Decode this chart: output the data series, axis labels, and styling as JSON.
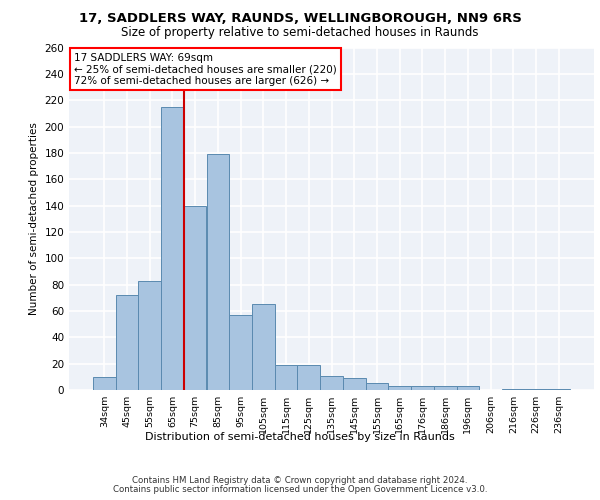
{
  "title1": "17, SADDLERS WAY, RAUNDS, WELLINGBOROUGH, NN9 6RS",
  "title2": "Size of property relative to semi-detached houses in Raunds",
  "xlabel": "Distribution of semi-detached houses by size in Raunds",
  "ylabel": "Number of semi-detached properties",
  "footer1": "Contains HM Land Registry data © Crown copyright and database right 2024.",
  "footer2": "Contains public sector information licensed under the Open Government Licence v3.0.",
  "categories": [
    "34sqm",
    "45sqm",
    "55sqm",
    "65sqm",
    "75sqm",
    "85sqm",
    "95sqm",
    "105sqm",
    "115sqm",
    "125sqm",
    "135sqm",
    "145sqm",
    "155sqm",
    "165sqm",
    "176sqm",
    "186sqm",
    "196sqm",
    "206sqm",
    "216sqm",
    "226sqm",
    "236sqm"
  ],
  "values": [
    10,
    72,
    83,
    215,
    140,
    179,
    57,
    65,
    19,
    19,
    11,
    9,
    5,
    3,
    3,
    3,
    3,
    0,
    1,
    1,
    1
  ],
  "bar_color": "#a8c4e0",
  "bar_edge_color": "#5a8ab0",
  "property_bin_index": 3,
  "red_line_label": "17 SADDLERS WAY: 69sqm",
  "annotation_line1": "← 25% of semi-detached houses are smaller (220)",
  "annotation_line2": "72% of semi-detached houses are larger (626) →",
  "red_line_color": "#cc0000",
  "ylim": [
    0,
    260
  ],
  "yticks": [
    0,
    20,
    40,
    60,
    80,
    100,
    120,
    140,
    160,
    180,
    200,
    220,
    240,
    260
  ],
  "bg_color": "#eef2f8",
  "grid_color": "white"
}
